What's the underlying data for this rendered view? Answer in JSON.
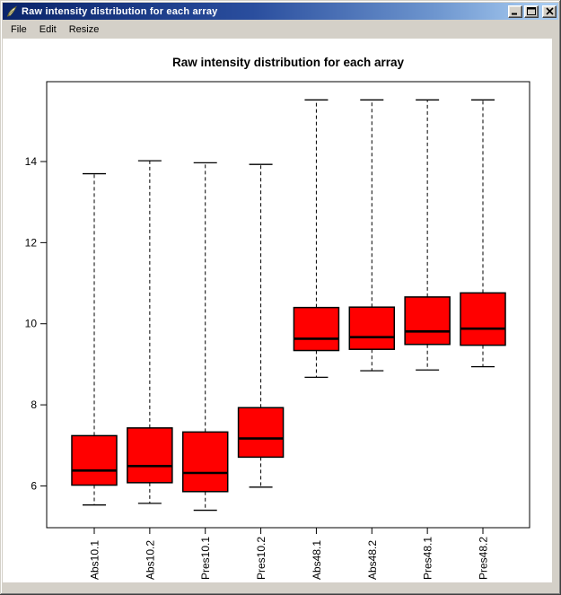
{
  "window": {
    "title": "Raw intensity distribution for each array"
  },
  "menu": {
    "items": [
      {
        "label": "File"
      },
      {
        "label": "Edit"
      },
      {
        "label": "Resize"
      }
    ]
  },
  "icons": {
    "app_icon": "r-graphics-feather-icon",
    "minimize": "minimize-icon",
    "maximize": "maximize-icon",
    "close": "close-icon"
  },
  "colors": {
    "titlebar_start": "#0A246A",
    "titlebar_end": "#A6CAF0",
    "chrome_gray": "#D4D0C8",
    "box_red": "#FF0000",
    "plot_black": "#000000",
    "canvas_white": "#FFFFFF"
  },
  "chart_data": {
    "type": "boxplot",
    "title": "Raw intensity distribution for each array",
    "xlabel": "",
    "ylabel": "",
    "grid": false,
    "legend": false,
    "categories": [
      "Abs10.1",
      "Abs10.2",
      "Pres10.1",
      "Pres10.2",
      "Abs48.1",
      "Abs48.2",
      "Pres48.1",
      "Pres48.2"
    ],
    "yticks": [
      6,
      8,
      10,
      12,
      14
    ],
    "ylim": [
      4.97,
      15.97
    ],
    "box_fill": "#FF0000",
    "box_stroke": "#000000",
    "series": [
      {
        "name": "Abs10.1",
        "whisker_low": 5.53,
        "q1": 6.02,
        "median": 6.38,
        "q3": 7.24,
        "whisker_high": 13.7
      },
      {
        "name": "Abs10.2",
        "whisker_low": 5.57,
        "q1": 6.08,
        "median": 6.49,
        "q3": 7.43,
        "whisker_high": 14.02
      },
      {
        "name": "Pres10.1",
        "whisker_low": 5.4,
        "q1": 5.86,
        "median": 6.32,
        "q3": 7.33,
        "whisker_high": 13.97
      },
      {
        "name": "Pres10.2",
        "whisker_low": 5.97,
        "q1": 6.71,
        "median": 7.17,
        "q3": 7.93,
        "whisker_high": 13.93
      },
      {
        "name": "Abs48.1",
        "whisker_low": 8.68,
        "q1": 9.34,
        "median": 9.63,
        "q3": 10.4,
        "whisker_high": 15.52
      },
      {
        "name": "Abs48.2",
        "whisker_low": 8.84,
        "q1": 9.37,
        "median": 9.67,
        "q3": 10.41,
        "whisker_high": 15.52
      },
      {
        "name": "Pres48.1",
        "whisker_low": 8.86,
        "q1": 9.49,
        "median": 9.81,
        "q3": 10.66,
        "whisker_high": 15.52
      },
      {
        "name": "Pres48.2",
        "whisker_low": 8.94,
        "q1": 9.47,
        "median": 9.88,
        "q3": 10.76,
        "whisker_high": 15.52
      }
    ]
  }
}
